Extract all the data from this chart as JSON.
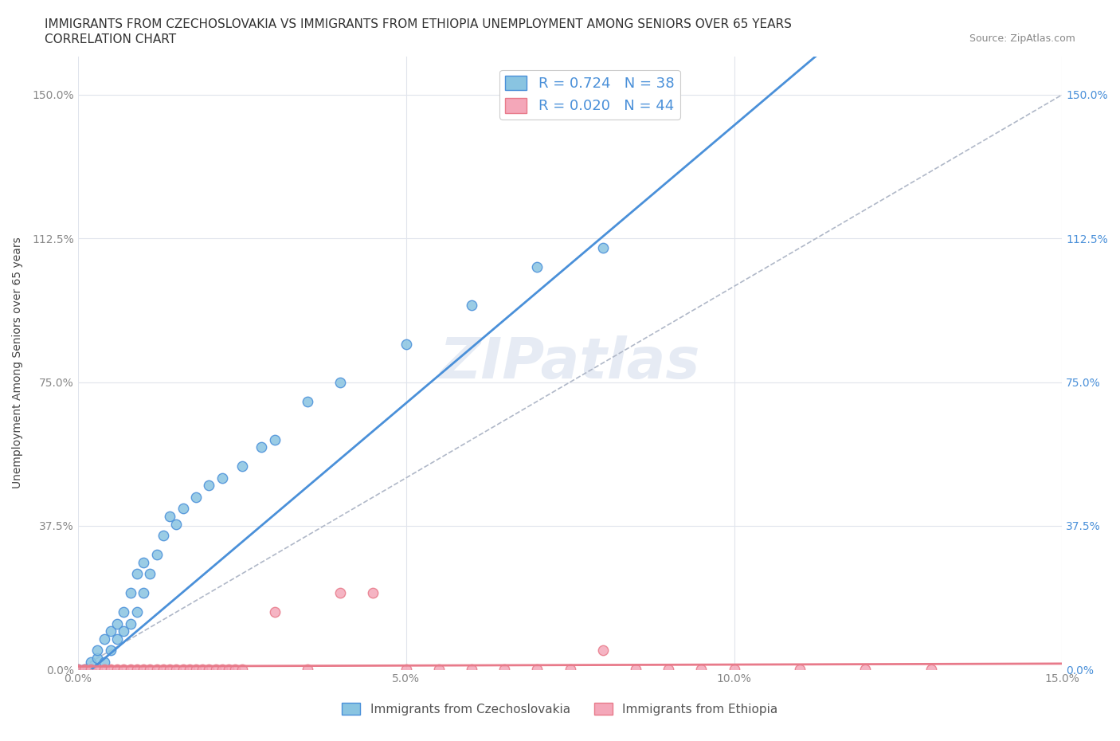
{
  "title_line1": "IMMIGRANTS FROM CZECHOSLOVAKIA VS IMMIGRANTS FROM ETHIOPIA UNEMPLOYMENT AMONG SENIORS OVER 65 YEARS",
  "title_line2": "CORRELATION CHART",
  "source": "Source: ZipAtlas.com",
  "ylabel": "Unemployment Among Seniors over 65 years",
  "xlim": [
    0.0,
    0.15
  ],
  "ylim": [
    0.0,
    1.6
  ],
  "xtick_labels": [
    "0.0%",
    "5.0%",
    "10.0%",
    "15.0%"
  ],
  "xticks": [
    0.0,
    0.05,
    0.1,
    0.15
  ],
  "ytick_labels": [
    "0.0%",
    "37.5%",
    "75.0%",
    "112.5%",
    "150.0%"
  ],
  "yticks": [
    0.0,
    0.375,
    0.75,
    1.125,
    1.5
  ],
  "R_czech": 0.724,
  "N_czech": 38,
  "R_ethiopia": 0.02,
  "N_ethiopia": 44,
  "color_czech": "#89c4e1",
  "color_ethiopia": "#f4a7b9",
  "color_trend_czech": "#4a90d9",
  "color_trend_ethiopia": "#e87a8a",
  "color_diag": "#b0b8c8",
  "background_color": "#ffffff",
  "grid_color": "#e0e4ec",
  "watermark": "ZIPatlas",
  "slope_czech": 14.5,
  "intercept_czech": -0.03,
  "slope_eth": 0.05,
  "intercept_eth": 0.008,
  "czech_x": [
    0.0,
    0.001,
    0.002,
    0.002,
    0.003,
    0.003,
    0.004,
    0.004,
    0.005,
    0.005,
    0.006,
    0.006,
    0.007,
    0.007,
    0.008,
    0.008,
    0.009,
    0.009,
    0.01,
    0.01,
    0.011,
    0.012,
    0.013,
    0.014,
    0.015,
    0.016,
    0.018,
    0.02,
    0.022,
    0.025,
    0.028,
    0.03,
    0.035,
    0.04,
    0.05,
    0.06,
    0.07,
    0.08
  ],
  "czech_y": [
    0.0,
    0.0,
    0.0,
    0.02,
    0.03,
    0.05,
    0.02,
    0.08,
    0.05,
    0.1,
    0.08,
    0.12,
    0.1,
    0.15,
    0.12,
    0.2,
    0.15,
    0.25,
    0.2,
    0.28,
    0.25,
    0.3,
    0.35,
    0.4,
    0.38,
    0.42,
    0.45,
    0.48,
    0.5,
    0.53,
    0.58,
    0.6,
    0.7,
    0.75,
    0.85,
    0.95,
    1.05,
    1.1
  ],
  "ethiopia_x": [
    0.0,
    0.001,
    0.002,
    0.003,
    0.004,
    0.005,
    0.006,
    0.007,
    0.008,
    0.009,
    0.01,
    0.011,
    0.012,
    0.013,
    0.014,
    0.015,
    0.016,
    0.017,
    0.018,
    0.019,
    0.02,
    0.021,
    0.022,
    0.023,
    0.024,
    0.025,
    0.03,
    0.035,
    0.04,
    0.045,
    0.05,
    0.055,
    0.06,
    0.065,
    0.07,
    0.075,
    0.08,
    0.085,
    0.09,
    0.095,
    0.1,
    0.11,
    0.12,
    0.13
  ],
  "ethiopia_y": [
    0.0,
    0.0,
    0.0,
    0.0,
    0.0,
    0.0,
    0.0,
    0.0,
    0.0,
    0.0,
    0.0,
    0.0,
    0.0,
    0.0,
    0.0,
    0.0,
    0.0,
    0.0,
    0.0,
    0.0,
    0.0,
    0.0,
    0.0,
    0.0,
    0.0,
    0.0,
    0.15,
    0.0,
    0.2,
    0.2,
    0.0,
    0.0,
    0.0,
    0.0,
    0.0,
    0.0,
    0.05,
    0.0,
    0.0,
    0.0,
    0.0,
    0.0,
    0.0,
    0.0
  ],
  "legend_bottom_labels": [
    "Immigrants from Czechoslovakia",
    "Immigrants from Ethiopia"
  ]
}
